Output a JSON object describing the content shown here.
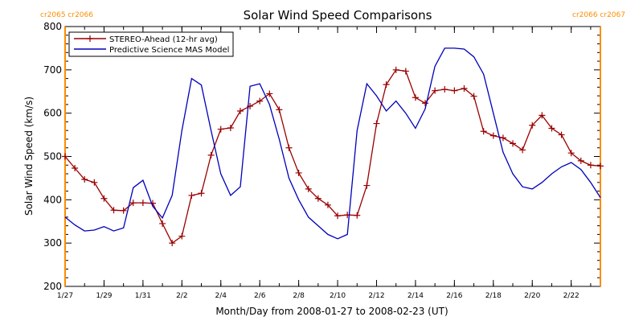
{
  "chart_data": {
    "type": "line",
    "title": "Solar Wind Speed Comparisons",
    "xlabel": "Month/Day from 2008-01-27 to 2008-02-23 (UT)",
    "ylabel": "Solar Wind Speed (km/s)",
    "xlim": [
      "2008-01-27",
      "2008-02-23 12:00"
    ],
    "ylim": [
      200,
      800
    ],
    "x_ticks": [
      {
        "date": "2008-01-27",
        "label": "1/27"
      },
      {
        "date": "2008-01-29",
        "label": "1/29"
      },
      {
        "date": "2008-01-31",
        "label": "1/31"
      },
      {
        "date": "2008-02-02",
        "label": "2/2"
      },
      {
        "date": "2008-02-04",
        "label": "2/4"
      },
      {
        "date": "2008-02-06",
        "label": "2/6"
      },
      {
        "date": "2008-02-08",
        "label": "2/8"
      },
      {
        "date": "2008-02-10",
        "label": "2/10"
      },
      {
        "date": "2008-02-12",
        "label": "2/12"
      },
      {
        "date": "2008-02-14",
        "label": "2/14"
      },
      {
        "date": "2008-02-16",
        "label": "2/16"
      },
      {
        "date": "2008-02-18",
        "label": "2/18"
      },
      {
        "date": "2008-02-20",
        "label": "2/20"
      },
      {
        "date": "2008-02-22",
        "label": "2/22"
      }
    ],
    "y_ticks": [
      200,
      300,
      400,
      500,
      600,
      700,
      800
    ],
    "legend_position": "top-left",
    "carrington_markers": [
      {
        "date": "2008-01-27",
        "labels": [
          "cr2065",
          "cr2066"
        ],
        "color": "#ff8c00"
      },
      {
        "date": "2008-02-23 12:00",
        "labels": [
          "cr2066",
          "cr2067"
        ],
        "color": "#ff8c00"
      }
    ],
    "series": [
      {
        "name": "STEREO-Ahead (12-hr avg)",
        "color": "#990000",
        "marker": "plus",
        "x": [
          "2008-01-27 00:00",
          "2008-01-27 12:00",
          "2008-01-28 00:00",
          "2008-01-28 12:00",
          "2008-01-29 00:00",
          "2008-01-29 12:00",
          "2008-01-30 00:00",
          "2008-01-30 12:00",
          "2008-01-31 00:00",
          "2008-01-31 12:00",
          "2008-02-01 00:00",
          "2008-02-01 12:00",
          "2008-02-02 00:00",
          "2008-02-02 12:00",
          "2008-02-03 00:00",
          "2008-02-03 12:00",
          "2008-02-04 00:00",
          "2008-02-04 12:00",
          "2008-02-05 00:00",
          "2008-02-05 12:00",
          "2008-02-06 00:00",
          "2008-02-06 12:00",
          "2008-02-07 00:00",
          "2008-02-07 12:00",
          "2008-02-08 00:00",
          "2008-02-08 12:00",
          "2008-02-09 00:00",
          "2008-02-09 12:00",
          "2008-02-10 00:00",
          "2008-02-10 12:00",
          "2008-02-11 00:00",
          "2008-02-11 12:00",
          "2008-02-12 00:00",
          "2008-02-12 12:00",
          "2008-02-13 00:00",
          "2008-02-13 12:00",
          "2008-02-14 00:00",
          "2008-02-14 12:00",
          "2008-02-15 00:00",
          "2008-02-15 12:00",
          "2008-02-16 00:00",
          "2008-02-16 12:00",
          "2008-02-17 00:00",
          "2008-02-17 12:00",
          "2008-02-18 00:00",
          "2008-02-18 12:00",
          "2008-02-19 00:00",
          "2008-02-19 12:00",
          "2008-02-20 00:00",
          "2008-02-20 12:00",
          "2008-02-21 00:00",
          "2008-02-21 12:00",
          "2008-02-22 00:00",
          "2008-02-22 12:00",
          "2008-02-23 00:00",
          "2008-02-23 12:00"
        ],
        "y": [
          500,
          473,
          447,
          440,
          403,
          376,
          375,
          393,
          393,
          392,
          345,
          300,
          316,
          410,
          415,
          503,
          563,
          566,
          605,
          616,
          628,
          645,
          608,
          520,
          462,
          425,
          403,
          388,
          363,
          365,
          364,
          433,
          576,
          666,
          700,
          697,
          636,
          623,
          652,
          655,
          652,
          657,
          639,
          558,
          548,
          543,
          530,
          515,
          572,
          595,
          565,
          550,
          508,
          490,
          480,
          478
        ]
      },
      {
        "name": "Predictive Science MAS Model",
        "color": "#0000bb",
        "marker": "none",
        "x": [
          "2008-01-27 00:00",
          "2008-01-27 12:00",
          "2008-01-28 00:00",
          "2008-01-28 12:00",
          "2008-01-29 00:00",
          "2008-01-29 12:00",
          "2008-01-30 00:00",
          "2008-01-30 12:00",
          "2008-01-31 00:00",
          "2008-01-31 12:00",
          "2008-02-01 00:00",
          "2008-02-01 12:00",
          "2008-02-02 00:00",
          "2008-02-02 12:00",
          "2008-02-03 00:00",
          "2008-02-03 12:00",
          "2008-02-04 00:00",
          "2008-02-04 12:00",
          "2008-02-05 00:00",
          "2008-02-05 12:00",
          "2008-02-06 00:00",
          "2008-02-06 12:00",
          "2008-02-07 00:00",
          "2008-02-07 12:00",
          "2008-02-08 00:00",
          "2008-02-08 12:00",
          "2008-02-09 00:00",
          "2008-02-09 12:00",
          "2008-02-10 00:00",
          "2008-02-10 12:00",
          "2008-02-11 00:00",
          "2008-02-11 12:00",
          "2008-02-12 00:00",
          "2008-02-12 12:00",
          "2008-02-13 00:00",
          "2008-02-13 12:00",
          "2008-02-14 00:00",
          "2008-02-14 12:00",
          "2008-02-15 00:00",
          "2008-02-15 12:00",
          "2008-02-16 00:00",
          "2008-02-16 12:00",
          "2008-02-17 00:00",
          "2008-02-17 12:00",
          "2008-02-18 00:00",
          "2008-02-18 12:00",
          "2008-02-19 00:00",
          "2008-02-19 12:00",
          "2008-02-20 00:00",
          "2008-02-20 12:00",
          "2008-02-21 00:00",
          "2008-02-21 12:00",
          "2008-02-22 00:00",
          "2008-02-22 12:00",
          "2008-02-23 00:00",
          "2008-02-23 12:00"
        ],
        "y": [
          360,
          342,
          328,
          330,
          338,
          328,
          335,
          428,
          445,
          385,
          358,
          410,
          560,
          680,
          665,
          560,
          460,
          410,
          430,
          662,
          668,
          620,
          540,
          450,
          400,
          360,
          340,
          320,
          310,
          320,
          560,
          668,
          640,
          605,
          628,
          600,
          565,
          610,
          708,
          750,
          750,
          748,
          730,
          690,
          600,
          510,
          460,
          430,
          425,
          440,
          460,
          476,
          486,
          470,
          440,
          405
        ]
      }
    ]
  }
}
